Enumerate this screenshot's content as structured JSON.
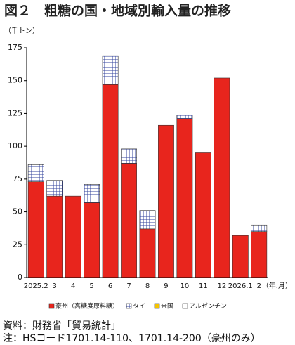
{
  "chart_data": {
    "type": "stacked_bar",
    "title": "図２　粗糖の国・地域別輸入量の推移",
    "y_label": "（千トン）",
    "x_label": "（年.月）",
    "categories": [
      "2025.2",
      "3",
      "4",
      "5",
      "6",
      "7",
      "8",
      "9",
      "10",
      "11",
      "12",
      "2026.1",
      "2"
    ],
    "series": [
      {
        "name": "豪州（高糖度原料糖）",
        "color": "#e8251d",
        "values": [
          73,
          62,
          62,
          57,
          147,
          87,
          37,
          116,
          121,
          95,
          152,
          32,
          35
        ]
      },
      {
        "name": "タイ",
        "color": "#34449e",
        "pattern": "grid",
        "values": [
          13,
          12,
          0,
          14,
          22,
          11,
          14,
          0,
          3,
          0,
          0,
          0,
          5
        ]
      },
      {
        "name": "米国",
        "color": "#f5c400",
        "values": [
          0,
          0,
          0,
          0,
          0,
          0,
          0,
          0,
          0,
          0,
          0,
          0,
          0
        ]
      },
      {
        "name": "アルゼンチン",
        "color": "#ffffff",
        "values": [
          0,
          0,
          0,
          0,
          0,
          0,
          0,
          0,
          0,
          0,
          0,
          0,
          0
        ]
      }
    ],
    "ylim": [
      0,
      175
    ],
    "yticks": [
      0,
      25,
      50,
      75,
      100,
      125,
      150,
      175
    ],
    "grid": false,
    "source": "資料：財務省「貿易統計」",
    "note": "注：HSコード1701.14-110、1701.14-200（豪州のみ）"
  }
}
